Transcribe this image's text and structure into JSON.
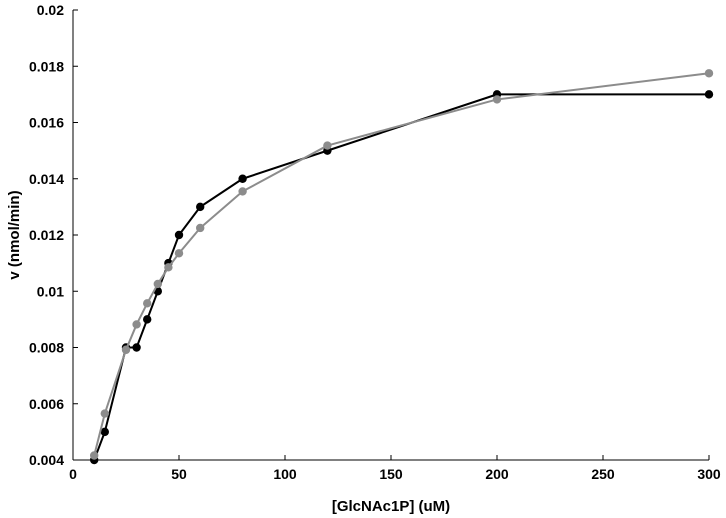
{
  "chart_data": {
    "type": "line",
    "title": "",
    "xlabel": "[GlcNAc1P] (uM)",
    "ylabel": "v (nmol/min)",
    "xlim": [
      0,
      300
    ],
    "ylim": [
      0.004,
      0.02
    ],
    "x_ticks": [
      0,
      50,
      100,
      150,
      200,
      250,
      300
    ],
    "y_ticks": [
      0.004,
      0.006,
      0.008,
      0.01,
      0.012,
      0.014,
      0.016,
      0.018,
      0.02
    ],
    "x_tick_labels": [
      "0",
      "50",
      "100",
      "150",
      "200",
      "250",
      "300"
    ],
    "y_tick_labels": [
      "0.004",
      "0.006",
      "0.008",
      "0.01",
      "0.012",
      "0.014",
      "0.016",
      "0.018",
      "0.02"
    ],
    "grid": false,
    "legend": "none",
    "series": [
      {
        "color": "#000000",
        "marker": "circle",
        "x": [
          10,
          15,
          25,
          30,
          35,
          40,
          45,
          50,
          60,
          80,
          120,
          200,
          300
        ],
        "y": [
          0.004,
          0.005,
          0.008,
          0.008,
          0.009,
          0.01,
          0.011,
          0.012,
          0.013,
          0.014,
          0.015,
          0.017,
          0.017
        ]
      },
      {
        "color": "#8c8c8c",
        "marker": "circle",
        "x": [
          10,
          15,
          25,
          30,
          35,
          40,
          45,
          50,
          60,
          80,
          120,
          200,
          300
        ],
        "y": [
          0.00416,
          0.00565,
          0.00792,
          0.00882,
          0.00957,
          0.01026,
          0.01085,
          0.01135,
          0.01225,
          0.01355,
          0.01518,
          0.01682,
          0.01775
        ]
      }
    ]
  }
}
